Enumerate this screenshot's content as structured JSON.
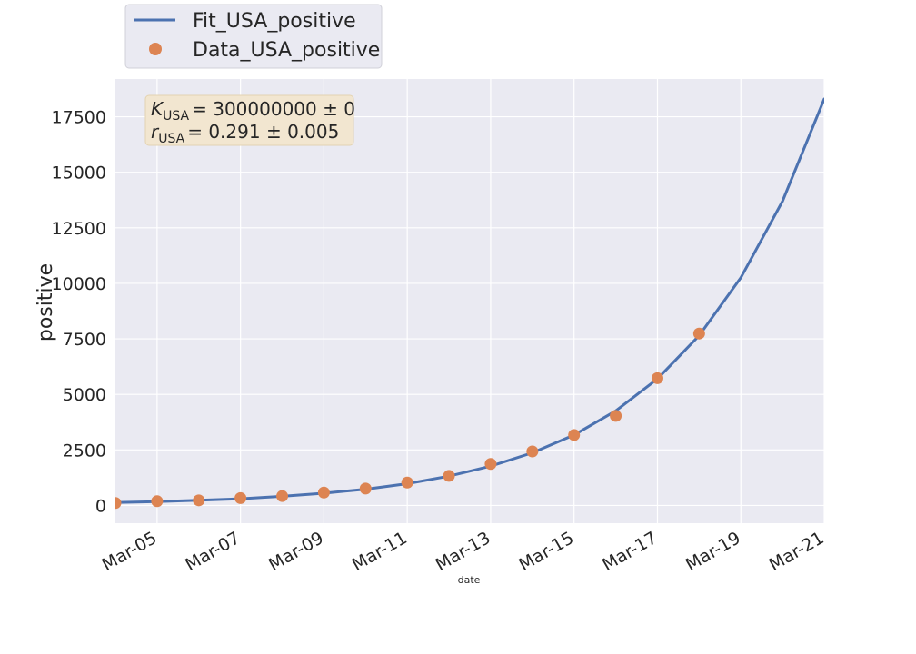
{
  "chart_data": {
    "type": "line",
    "title": "",
    "xlabel": "date",
    "ylabel": "positive",
    "x": [
      "Mar-04",
      "Mar-05",
      "Mar-06",
      "Mar-07",
      "Mar-08",
      "Mar-09",
      "Mar-10",
      "Mar-11",
      "Mar-12",
      "Mar-13",
      "Mar-14",
      "Mar-15",
      "Mar-16",
      "Mar-17",
      "Mar-18",
      "Mar-19",
      "Mar-20",
      "Mar-21"
    ],
    "xticks": [
      "Mar-05",
      "Mar-07",
      "Mar-09",
      "Mar-11",
      "Mar-13",
      "Mar-15",
      "Mar-17",
      "Mar-19",
      "Mar-21"
    ],
    "yticks": [
      0,
      2500,
      5000,
      7500,
      10000,
      12500,
      15000,
      17500
    ],
    "yticks_display": [
      "0",
      "2500",
      "5000",
      "7500",
      "10000",
      "12500",
      "15000",
      "17500"
    ],
    "ylim": [
      -800,
      19200
    ],
    "grid": true,
    "legend_position": "above-top-left",
    "series": [
      {
        "name": "Fit_USA_positive",
        "style": "line",
        "color": "#4c72b0",
        "x": [
          "Mar-04",
          "Mar-05",
          "Mar-06",
          "Mar-07",
          "Mar-08",
          "Mar-09",
          "Mar-10",
          "Mar-11",
          "Mar-12",
          "Mar-13",
          "Mar-14",
          "Mar-15",
          "Mar-16",
          "Mar-17",
          "Mar-18",
          "Mar-19",
          "Mar-20",
          "Mar-21"
        ],
        "values": [
          130,
          170,
          230,
          300,
          410,
          550,
          730,
          980,
          1320,
          1770,
          2370,
          3170,
          4260,
          5700,
          7650,
          10250,
          13700,
          18300
        ]
      },
      {
        "name": "Data_USA_positive",
        "style": "markers",
        "color": "#dd8452",
        "x": [
          "Mar-04",
          "Mar-05",
          "Mar-06",
          "Mar-07",
          "Mar-08",
          "Mar-09",
          "Mar-10",
          "Mar-11",
          "Mar-12",
          "Mar-13",
          "Mar-14",
          "Mar-15",
          "Mar-16",
          "Mar-17",
          "Mar-18"
        ],
        "values": [
          110,
          190,
          230,
          330,
          420,
          580,
          760,
          1030,
          1330,
          1870,
          2430,
          3170,
          4030,
          5730,
          7740
        ]
      }
    ],
    "annotation": {
      "line1": {
        "symbol": "K",
        "subscript": "USA",
        "text": "= 300000000 ± 0"
      },
      "line2": {
        "symbol": "r",
        "subscript": "USA",
        "text": "= 0.291 ± 0.005"
      }
    },
    "colors": {
      "plot_background": "#eaeaf2",
      "grid": "#ffffff",
      "annotation_box": "#f2e6d0"
    }
  }
}
